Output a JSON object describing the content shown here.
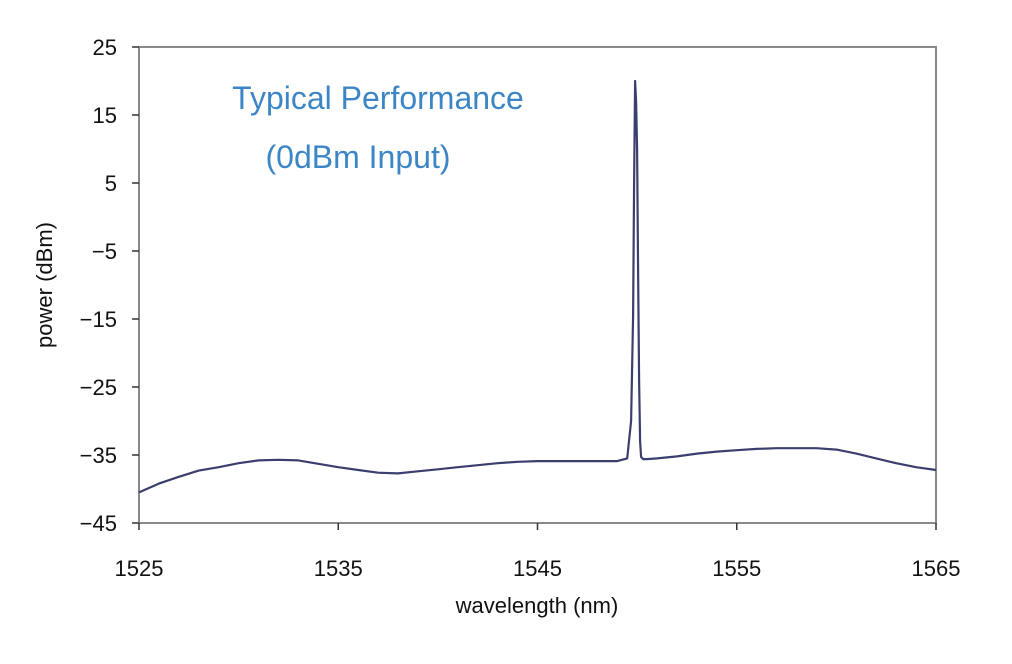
{
  "chart_data": {
    "type": "line",
    "title": "",
    "xlabel": "wavelength (nm)",
    "ylabel": "power (dBm)",
    "xlim": [
      1525,
      1565
    ],
    "ylim": [
      -45,
      25
    ],
    "x_ticks": [
      "1525",
      "1535",
      "1545",
      "1555",
      "1565"
    ],
    "y_ticks": [
      "25",
      "15",
      "5",
      "-5",
      "-15",
      "-25",
      "-35",
      "-45"
    ],
    "grid": false,
    "legend": "none",
    "annotations": [
      "Typical Performance",
      "(0dBm Input)"
    ],
    "colors": {
      "line": "#3b3f6e",
      "annotation": "#3d86c6",
      "frame": "#888888"
    },
    "series": [
      {
        "x": [
          1525,
          1526,
          1527,
          1528,
          1529,
          1530,
          1531,
          1532,
          1533,
          1534,
          1535,
          1536,
          1537,
          1538,
          1539,
          1540,
          1541,
          1542,
          1543,
          1544,
          1545,
          1546,
          1547,
          1548,
          1549,
          1549.5,
          1549.7,
          1549.8,
          1549.85,
          1549.9,
          1549.95,
          1550.0,
          1550.05,
          1550.1,
          1550.15,
          1550.2,
          1550.3,
          1550.5,
          1551,
          1552,
          1553,
          1554,
          1555,
          1556,
          1557,
          1558,
          1559,
          1560,
          1561,
          1562,
          1563,
          1564,
          1565
        ],
        "y": [
          -40.5,
          -39.2,
          -38.2,
          -37.3,
          -36.8,
          -36.2,
          -35.8,
          -35.7,
          -35.8,
          -36.3,
          -36.8,
          -37.2,
          -37.6,
          -37.7,
          -37.4,
          -37.1,
          -36.8,
          -36.5,
          -36.2,
          -36.0,
          -35.9,
          -35.9,
          -35.9,
          -35.9,
          -35.9,
          -35.5,
          -30.0,
          -14.5,
          5.0,
          20.0,
          17.0,
          10.0,
          -8.0,
          -24.0,
          -33.0,
          -35.3,
          -35.6,
          -35.6,
          -35.5,
          -35.2,
          -34.8,
          -34.5,
          -34.3,
          -34.1,
          -34.0,
          -34.0,
          -34.0,
          -34.2,
          -34.8,
          -35.5,
          -36.2,
          -36.8,
          -37.2
        ]
      }
    ]
  }
}
